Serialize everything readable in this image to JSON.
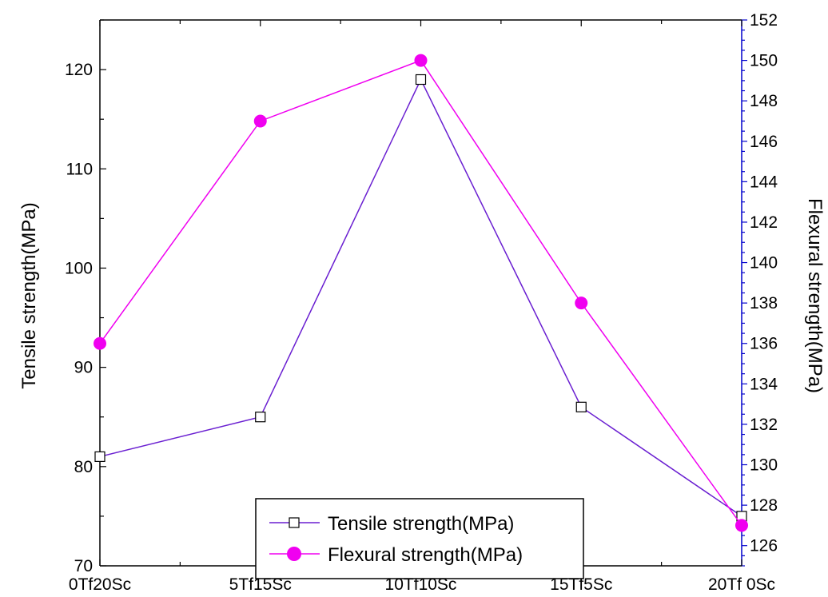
{
  "chart_data": {
    "type": "line",
    "categories": [
      "0Tf20Sc",
      "5Tf15Sc",
      "10Tf10Sc",
      "15Tf5Sc",
      "20Tf 0Sc"
    ],
    "series": [
      {
        "name": "Tensile strength(MPa)",
        "axis": "left",
        "values": [
          81,
          85,
          119,
          86,
          75
        ],
        "color": "#6a1fd1",
        "marker": "open-square"
      },
      {
        "name": "Flexural strength(MPa)",
        "axis": "right",
        "values": [
          136,
          147,
          150,
          138,
          127
        ],
        "color": "#f000f0",
        "marker": "filled-circle"
      }
    ],
    "ylabel": "Tensile strength(MPa)",
    "y2label": "Flexural strength(MPa)",
    "xlabel": "",
    "ylim": [
      70,
      125
    ],
    "y2lim": [
      125,
      152
    ],
    "yticks": [
      70,
      80,
      90,
      100,
      110,
      120
    ],
    "y2ticks": [
      126,
      128,
      130,
      132,
      134,
      136,
      138,
      140,
      142,
      144,
      146,
      148,
      150,
      152
    ],
    "right_axis_color": "#0000cc",
    "grid": false,
    "legend_position": "bottom-center"
  }
}
